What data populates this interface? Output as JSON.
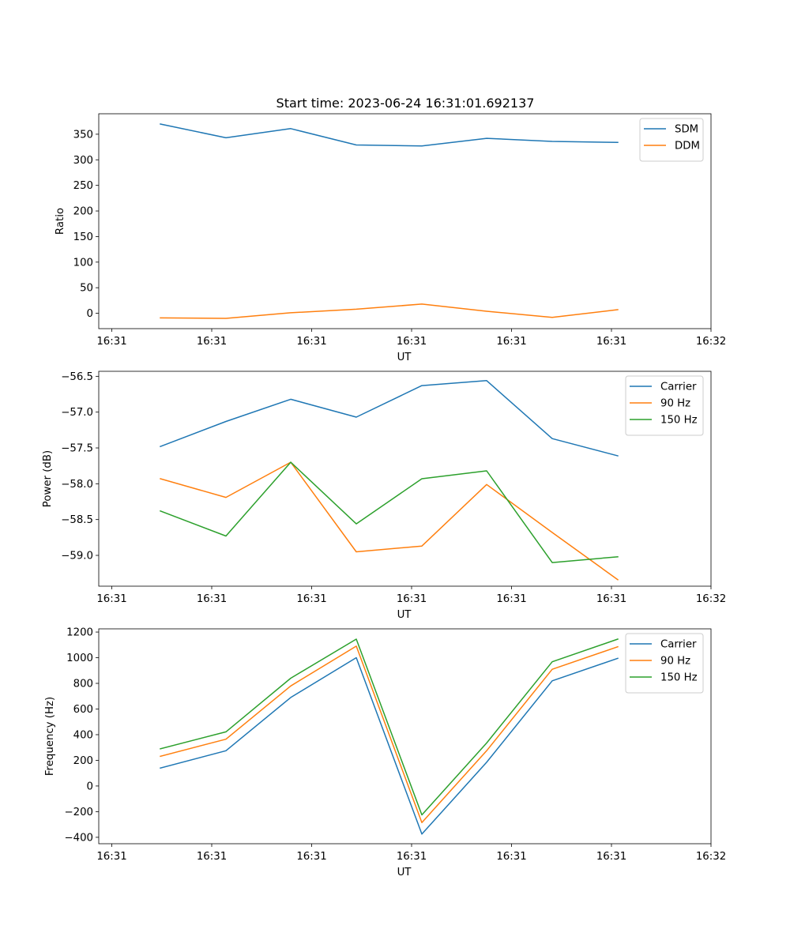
{
  "figure": {
    "title": "Start time: 2023-06-24 16:31:01.692137"
  },
  "chart_data": [
    {
      "type": "line",
      "xlabel": "UT",
      "ylabel": "Ratio",
      "x_ticks": [
        "16:31",
        "16:31",
        "16:31",
        "16:31",
        "16:31",
        "16:31",
        "16:32"
      ],
      "y_ticks": [
        "0",
        "50",
        "100",
        "150",
        "200",
        "250",
        "300",
        "350"
      ],
      "ylim": [
        -30,
        390
      ],
      "y_tick_values": [
        0,
        50,
        100,
        150,
        200,
        250,
        300,
        350
      ],
      "legend_position": "top-right",
      "series": [
        {
          "name": "SDM",
          "color": "#1f77b4",
          "values": [
            370,
            343,
            361,
            329,
            327,
            342,
            336,
            334
          ]
        },
        {
          "name": "DDM",
          "color": "#ff7f0e",
          "values": [
            -9,
            -10,
            1,
            8,
            18,
            4,
            -8,
            7
          ]
        }
      ]
    },
    {
      "type": "line",
      "xlabel": "UT",
      "ylabel": "Power (dB)",
      "x_ticks": [
        "16:31",
        "16:31",
        "16:31",
        "16:31",
        "16:31",
        "16:31",
        "16:32"
      ],
      "y_ticks": [
        "−59.0",
        "−58.5",
        "−58.0",
        "−57.5",
        "−57.0",
        "−56.5"
      ],
      "ylim": [
        -59.43,
        -56.43
      ],
      "y_tick_values": [
        -59.0,
        -58.5,
        -58.0,
        -57.5,
        -57.0,
        -56.5
      ],
      "legend_position": "top-right",
      "series": [
        {
          "name": "Carrier",
          "color": "#1f77b4",
          "values": [
            -57.48,
            -57.13,
            -56.82,
            -57.07,
            -56.63,
            -56.56,
            -57.37,
            -57.61
          ]
        },
        {
          "name": "90 Hz",
          "color": "#ff7f0e",
          "values": [
            -57.93,
            -58.19,
            -57.7,
            -58.95,
            -58.87,
            -58.01,
            -58.68,
            -59.34
          ]
        },
        {
          "name": "150 Hz",
          "color": "#2ca02c",
          "values": [
            -58.38,
            -58.73,
            -57.7,
            -58.56,
            -57.93,
            -57.82,
            -59.1,
            -59.02
          ]
        }
      ]
    },
    {
      "type": "line",
      "xlabel": "UT",
      "ylabel": "Frequency (Hz)",
      "x_ticks": [
        "16:31",
        "16:31",
        "16:31",
        "16:31",
        "16:31",
        "16:31",
        "16:32"
      ],
      "y_ticks": [
        "−400",
        "−200",
        "0",
        "200",
        "400",
        "600",
        "800",
        "1000",
        "1200"
      ],
      "ylim": [
        -450,
        1225
      ],
      "y_tick_values": [
        -400,
        -200,
        0,
        200,
        400,
        600,
        800,
        1000,
        1200
      ],
      "legend_position": "top-right",
      "series": [
        {
          "name": "Carrier",
          "color": "#1f77b4",
          "values": [
            140,
            275,
            690,
            1000,
            -375,
            185,
            820,
            995
          ]
        },
        {
          "name": "90 Hz",
          "color": "#ff7f0e",
          "values": [
            232,
            365,
            780,
            1090,
            -285,
            275,
            910,
            1085
          ]
        },
        {
          "name": "150 Hz",
          "color": "#2ca02c",
          "values": [
            290,
            422,
            840,
            1145,
            -225,
            335,
            968,
            1145
          ]
        }
      ]
    }
  ]
}
